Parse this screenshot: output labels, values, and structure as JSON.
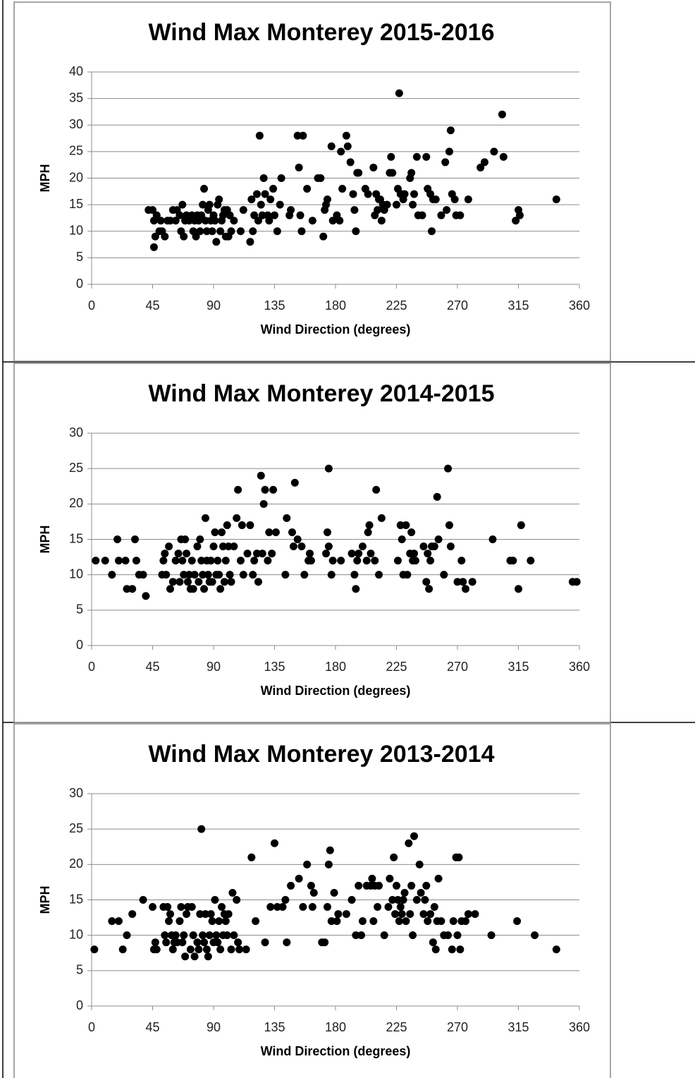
{
  "chart_data": [
    {
      "type": "scatter",
      "title": "Wind Max Monterey 2015-2016",
      "x_label": "Wind Direction (degrees)",
      "y_label": "MPH",
      "color": "#000000",
      "grid": true,
      "xlim": [
        0,
        360
      ],
      "xticks": [
        0,
        45,
        90,
        135,
        180,
        225,
        270,
        315,
        360
      ],
      "ylim": [
        0,
        40
      ],
      "yticks": [
        0,
        5,
        10,
        15,
        20,
        25,
        30,
        35,
        40
      ],
      "x": [
        42,
        45,
        46,
        47,
        46,
        48,
        50,
        51,
        52,
        54,
        56,
        58,
        60,
        62,
        63,
        65,
        66,
        67,
        68,
        69,
        70,
        72,
        74,
        75,
        76,
        77,
        78,
        79,
        80,
        81,
        82,
        83,
        84,
        85,
        86,
        87,
        88,
        89,
        90,
        91,
        92,
        93,
        94,
        95,
        96,
        97,
        98,
        99,
        100,
        101,
        102,
        103,
        105,
        110,
        112,
        117,
        118,
        119,
        120,
        122,
        123,
        124,
        125,
        126,
        127,
        128,
        130,
        131,
        132,
        134,
        135,
        137,
        139,
        140,
        146,
        147,
        152,
        153,
        154,
        155,
        156,
        159,
        163,
        167,
        169,
        171,
        172,
        173,
        174,
        177,
        178,
        181,
        183,
        184,
        185,
        188,
        189,
        191,
        193,
        194,
        195,
        196,
        197,
        202,
        204,
        208,
        209,
        210,
        211,
        212,
        213,
        214,
        215,
        216,
        218,
        220,
        221,
        222,
        225,
        226,
        227,
        228,
        229,
        230,
        231,
        235,
        236,
        237,
        238,
        240,
        241,
        244,
        247,
        248,
        250,
        251,
        252,
        254,
        258,
        261,
        262,
        264,
        265,
        266,
        268,
        269,
        272,
        278,
        287,
        290,
        297,
        303,
        304,
        313,
        315,
        316,
        343
      ],
      "values": [
        14,
        14,
        12,
        9,
        7,
        13,
        10,
        12,
        10,
        9,
        12,
        12,
        14,
        12,
        14,
        13,
        10,
        15,
        9,
        12,
        13,
        12,
        13,
        10,
        12,
        9,
        13,
        12,
        10,
        13,
        15,
        18,
        12,
        10,
        14,
        15,
        12,
        10,
        13,
        12,
        8,
        15,
        16,
        10,
        12,
        13,
        14,
        9,
        14,
        9,
        13,
        10,
        12,
        10,
        14,
        8,
        16,
        10,
        13,
        17,
        12,
        28,
        15,
        13,
        20,
        17,
        13,
        12,
        16,
        18,
        13,
        10,
        15,
        20,
        13,
        14,
        28,
        22,
        13,
        10,
        28,
        18,
        12,
        20,
        20,
        9,
        14,
        15,
        16,
        26,
        12,
        13,
        12,
        25,
        18,
        28,
        26,
        23,
        17,
        14,
        10,
        21,
        21,
        18,
        17,
        22,
        13,
        17,
        14,
        16,
        16,
        12,
        15,
        14,
        15,
        21,
        24,
        21,
        15,
        18,
        36,
        17,
        17,
        16,
        17,
        20,
        21,
        15,
        17,
        24,
        13,
        13,
        24,
        18,
        17,
        10,
        16,
        16,
        13,
        23,
        14,
        25,
        29,
        17,
        16,
        13,
        13,
        16,
        22,
        23,
        25,
        32,
        24,
        12,
        14,
        13,
        16
      ]
    },
    {
      "type": "scatter",
      "title": "Wind Max Monterey 2014-2015",
      "x_label": "Wind Direction (degrees)",
      "y_label": "MPH",
      "color": "#000000",
      "grid": true,
      "xlim": [
        0,
        360
      ],
      "xticks": [
        0,
        45,
        90,
        135,
        180,
        225,
        270,
        315,
        360
      ],
      "ylim": [
        0,
        30
      ],
      "yticks": [
        0,
        5,
        10,
        15,
        20,
        25,
        30
      ],
      "x": [
        3,
        10,
        15,
        19,
        20,
        25,
        26,
        30,
        32,
        33,
        35,
        38,
        40,
        52,
        53,
        54,
        55,
        57,
        58,
        60,
        62,
        64,
        65,
        66,
        67,
        68,
        69,
        70,
        71,
        72,
        73,
        74,
        75,
        76,
        78,
        79,
        80,
        81,
        82,
        83,
        84,
        85,
        86,
        87,
        88,
        89,
        90,
        91,
        92,
        93,
        94,
        95,
        96,
        97,
        98,
        99,
        100,
        101,
        102,
        103,
        105,
        107,
        108,
        110,
        111,
        112,
        115,
        117,
        119,
        120,
        122,
        123,
        125,
        126,
        127,
        128,
        130,
        131,
        133,
        134,
        136,
        143,
        144,
        148,
        149,
        150,
        152,
        155,
        157,
        160,
        161,
        162,
        173,
        174,
        175,
        175,
        177,
        178,
        184,
        192,
        194,
        195,
        196,
        197,
        200,
        203,
        204,
        205,
        206,
        209,
        210,
        212,
        214,
        226,
        228,
        229,
        230,
        232,
        233,
        235,
        236,
        237,
        238,
        239,
        245,
        247,
        248,
        249,
        250,
        251,
        253,
        255,
        256,
        260,
        263,
        264,
        265,
        270,
        273,
        274,
        276,
        281,
        296,
        309,
        311,
        315,
        317,
        324,
        355,
        358
      ],
      "values": [
        12,
        12,
        10,
        15,
        12,
        12,
        8,
        8,
        15,
        12,
        10,
        10,
        7,
        10,
        12,
        13,
        10,
        14,
        8,
        9,
        12,
        13,
        9,
        15,
        12,
        10,
        15,
        13,
        9,
        10,
        8,
        12,
        8,
        10,
        14,
        9,
        15,
        12,
        10,
        8,
        18,
        12,
        10,
        9,
        12,
        9,
        14,
        16,
        10,
        12,
        10,
        8,
        16,
        14,
        9,
        12,
        17,
        14,
        10,
        9,
        14,
        18,
        22,
        12,
        17,
        10,
        13,
        17,
        10,
        12,
        13,
        9,
        24,
        13,
        20,
        22,
        12,
        16,
        13,
        22,
        16,
        10,
        18,
        16,
        14,
        23,
        15,
        14,
        10,
        12,
        13,
        12,
        13,
        16,
        25,
        14,
        10,
        12,
        12,
        13,
        10,
        8,
        12,
        13,
        14,
        12,
        16,
        17,
        13,
        12,
        22,
        10,
        18,
        12,
        17,
        15,
        10,
        17,
        10,
        13,
        16,
        12,
        13,
        12,
        14,
        9,
        13,
        8,
        12,
        14,
        14,
        21,
        15,
        10,
        25,
        17,
        14,
        9,
        12,
        9,
        8,
        9,
        15,
        12,
        12,
        8,
        17,
        12,
        9,
        9
      ]
    },
    {
      "type": "scatter",
      "title": "Wind Max Monterey 2013-2014",
      "x_label": "Wind Direction (degrees)",
      "y_label": "MPH",
      "color": "#000000",
      "grid": true,
      "xlim": [
        0,
        360
      ],
      "xticks": [
        0,
        45,
        90,
        135,
        180,
        225,
        270,
        315,
        360
      ],
      "ylim": [
        0,
        30
      ],
      "yticks": [
        0,
        5,
        10,
        15,
        20,
        25,
        30
      ],
      "x": [
        2,
        15,
        20,
        23,
        26,
        30,
        38,
        45,
        46,
        47,
        48,
        53,
        54,
        55,
        56,
        57,
        58,
        59,
        60,
        61,
        62,
        63,
        65,
        66,
        67,
        68,
        69,
        70,
        71,
        73,
        74,
        75,
        76,
        78,
        79,
        80,
        81,
        82,
        83,
        84,
        85,
        86,
        87,
        88,
        89,
        90,
        91,
        92,
        93,
        94,
        95,
        96,
        97,
        98,
        99,
        100,
        101,
        103,
        104,
        105,
        107,
        108,
        109,
        114,
        118,
        121,
        128,
        132,
        135,
        137,
        141,
        143,
        144,
        147,
        153,
        156,
        159,
        162,
        163,
        164,
        170,
        172,
        174,
        175,
        176,
        177,
        179,
        181,
        182,
        188,
        192,
        195,
        197,
        199,
        200,
        203,
        206,
        207,
        208,
        209,
        211,
        212,
        216,
        219,
        220,
        222,
        223,
        224,
        225,
        226,
        227,
        228,
        229,
        230,
        231,
        232,
        234,
        235,
        236,
        237,
        238,
        240,
        242,
        243,
        245,
        246,
        247,
        248,
        250,
        252,
        253,
        254,
        255,
        256,
        258,
        260,
        263,
        266,
        267,
        269,
        270,
        271,
        272,
        273,
        276,
        278,
        283,
        295,
        314,
        327,
        343
      ],
      "values": [
        8,
        12,
        12,
        8,
        10,
        13,
        15,
        14,
        8,
        9,
        8,
        14,
        10,
        9,
        14,
        12,
        13,
        10,
        8,
        9,
        10,
        9,
        12,
        14,
        9,
        10,
        7,
        13,
        14,
        8,
        14,
        10,
        7,
        9,
        8,
        13,
        25,
        10,
        9,
        13,
        8,
        7,
        10,
        13,
        12,
        9,
        15,
        10,
        9,
        12,
        8,
        14,
        10,
        13,
        12,
        10,
        13,
        8,
        16,
        10,
        15,
        9,
        8,
        8,
        21,
        12,
        9,
        14,
        23,
        14,
        14,
        15,
        9,
        17,
        18,
        14,
        20,
        17,
        14,
        16,
        9,
        9,
        14,
        20,
        22,
        12,
        16,
        12,
        13,
        13,
        15,
        10,
        17,
        10,
        12,
        17,
        17,
        18,
        12,
        17,
        14,
        17,
        10,
        14,
        18,
        15,
        21,
        13,
        17,
        15,
        12,
        14,
        13,
        15,
        16,
        12,
        23,
        13,
        17,
        10,
        24,
        15,
        20,
        16,
        13,
        15,
        17,
        12,
        13,
        9,
        14,
        8,
        12,
        18,
        12,
        10,
        10,
        8,
        12,
        21,
        10,
        21,
        8,
        12,
        12,
        13,
        13,
        10,
        12,
        10,
        8
      ]
    }
  ]
}
